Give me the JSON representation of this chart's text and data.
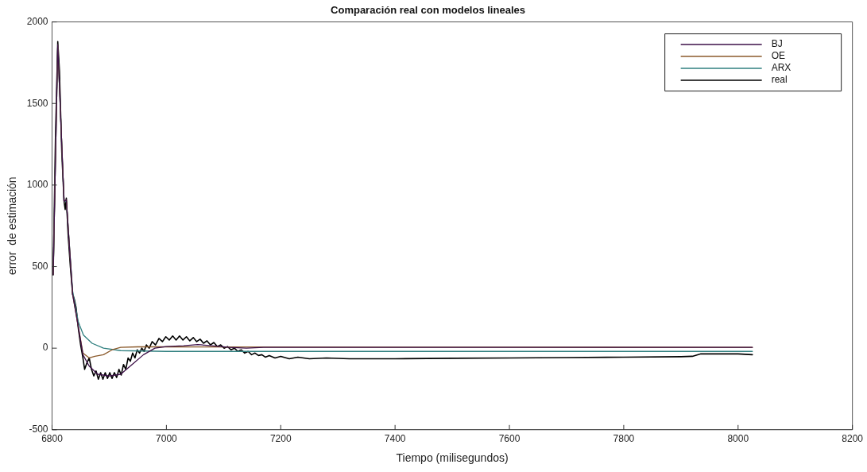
{
  "chart_data": {
    "type": "line",
    "title": "Comparación real con modelos lineales",
    "xlabel": "Tiempo (milisegundos)",
    "ylabel": "error  de estimación",
    "xlim": [
      6800,
      8200
    ],
    "xticks": [
      6800,
      7000,
      7200,
      7400,
      7600,
      7800,
      8000,
      8200
    ],
    "ylim": [
      -500,
      2000
    ],
    "yticks": [
      -500,
      0,
      500,
      1000,
      1500,
      2000
    ],
    "grid": false,
    "legend": "top right",
    "marker": "none",
    "line_style": "solid",
    "series": [
      {
        "name": "BJ",
        "color": "#3d1048",
        "x": [
          6802,
          6810,
          6821,
          6825,
          6836,
          6846,
          6854,
          6865,
          6880,
          6900,
          6920,
          6940,
          6960,
          6980,
          7000,
          7030,
          7055,
          7080,
          7110,
          7140,
          7170,
          7200,
          7600,
          8025
        ],
        "values": [
          450,
          1860,
          900,
          910,
          330,
          130,
          -40,
          -110,
          -160,
          -170,
          -160,
          -100,
          -40,
          0,
          10,
          15,
          22,
          15,
          5,
          0,
          5,
          5,
          5,
          5
        ]
      },
      {
        "name": "OE",
        "color": "#8b5a2b",
        "x": [
          6802,
          6810,
          6821,
          6825,
          6836,
          6846,
          6854,
          6865,
          6875,
          6890,
          6905,
          6920,
          6950,
          7000,
          7600,
          8025
        ],
        "values": [
          450,
          1860,
          900,
          910,
          330,
          130,
          -30,
          -60,
          -50,
          -40,
          -10,
          5,
          8,
          8,
          6,
          5
        ]
      },
      {
        "name": "ARX",
        "color": "#2f7f7f",
        "x": [
          6802,
          6810,
          6821,
          6825,
          6836,
          6846,
          6855,
          6870,
          6890,
          6920,
          7000,
          7600,
          8025
        ],
        "values": [
          450,
          1860,
          900,
          900,
          350,
          160,
          80,
          30,
          0,
          -15,
          -20,
          -20,
          -20
        ]
      },
      {
        "name": "real",
        "color": "#000000",
        "x": [
          6802,
          6806,
          6810,
          6813,
          6817,
          6821,
          6823,
          6825,
          6828,
          6832,
          6836,
          6839,
          6842,
          6846,
          6850,
          6854,
          6857,
          6861,
          6865,
          6869,
          6873,
          6877,
          6881,
          6885,
          6889,
          6893,
          6897,
          6901,
          6905,
          6909,
          6913,
          6917,
          6921,
          6925,
          6929,
          6933,
          6937,
          6941,
          6945,
          6949,
          6953,
          6957,
          6961,
          6965,
          6970,
          6975,
          6981,
          6987,
          6993,
          6999,
          7005,
          7011,
          7017,
          7023,
          7029,
          7035,
          7041,
          7047,
          7053,
          7059,
          7065,
          7071,
          7077,
          7083,
          7089,
          7095,
          7101,
          7107,
          7113,
          7119,
          7125,
          7131,
          7137,
          7143,
          7149,
          7155,
          7161,
          7167,
          7173,
          7180,
          7190,
          7200,
          7215,
          7230,
          7250,
          7280,
          7320,
          7400,
          7500,
          7600,
          7700,
          7800,
          7900,
          7920,
          7935,
          8000,
          8025
        ],
        "values": [
          450,
          1300,
          1880,
          1700,
          1200,
          900,
          850,
          920,
          700,
          500,
          330,
          300,
          250,
          120,
          20,
          -60,
          -130,
          -90,
          -60,
          -130,
          -170,
          -140,
          -190,
          -150,
          -190,
          -150,
          -185,
          -150,
          -185,
          -150,
          -180,
          -130,
          -165,
          -100,
          -130,
          -60,
          -80,
          -30,
          -60,
          -10,
          -30,
          0,
          -20,
          20,
          0,
          40,
          20,
          60,
          40,
          70,
          50,
          75,
          50,
          75,
          50,
          70,
          45,
          65,
          40,
          55,
          30,
          45,
          20,
          35,
          10,
          20,
          0,
          10,
          -10,
          0,
          -20,
          -10,
          -30,
          -20,
          -40,
          -30,
          -45,
          -40,
          -55,
          -45,
          -60,
          -50,
          -65,
          -55,
          -65,
          -60,
          -65,
          -65,
          -62,
          -60,
          -58,
          -55,
          -52,
          -50,
          -35,
          -35,
          -40
        ]
      }
    ]
  }
}
